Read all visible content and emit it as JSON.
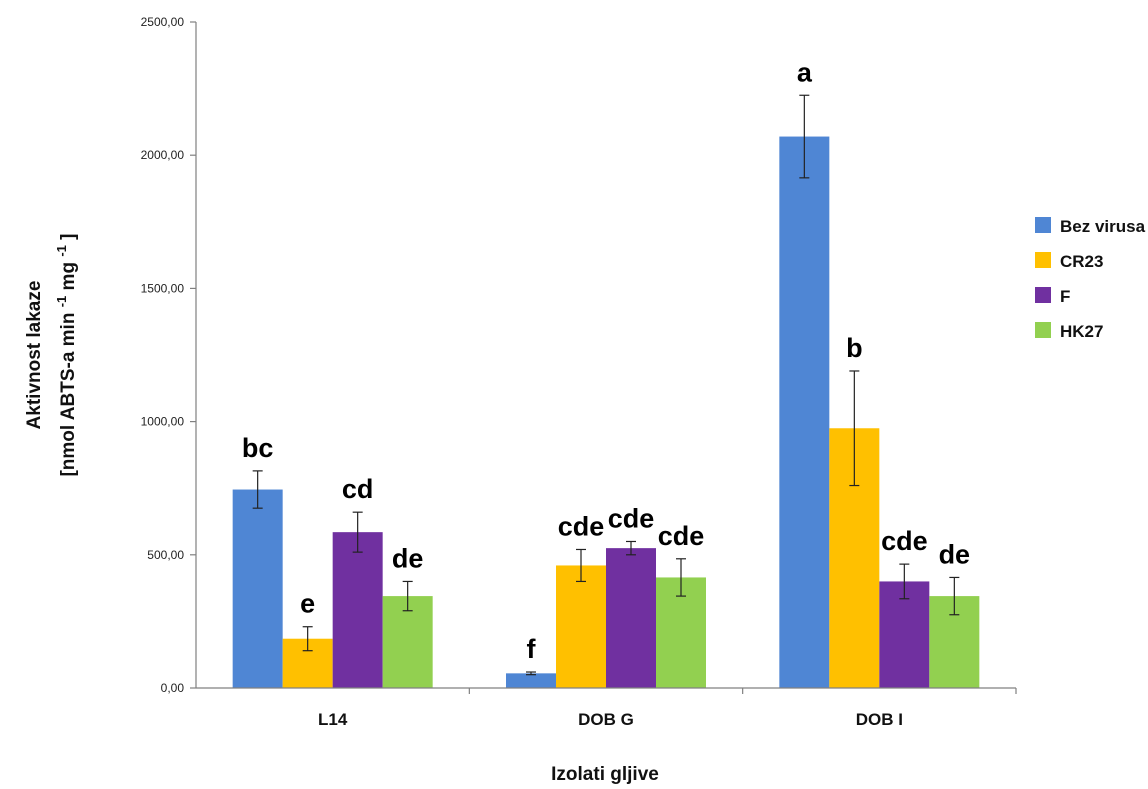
{
  "chart_data": {
    "type": "bar",
    "xlabel": "Izolati gljive",
    "ylabel_line1": "Aktivnost lakaze",
    "ylabel_line2": "[nmol ABTS-a min ",
    "ylabel_sup1": "-1",
    "ylabel_mid": " mg ",
    "ylabel_sup2": "-1",
    "ylabel_end": " ]",
    "ylim": [
      0,
      2500
    ],
    "yticks": [
      0,
      500,
      1000,
      1500,
      2000,
      2500
    ],
    "ytick_labels": [
      "0,00",
      "500,00",
      "1000,00",
      "1500,00",
      "2000,00",
      "2500,00"
    ],
    "categories": [
      "L14",
      "DOB G",
      "DOB I"
    ],
    "legend_position": "right",
    "grid": false,
    "series": [
      {
        "name": "Bez virusa",
        "color": "#4f86d4",
        "values": [
          745,
          55,
          2070
        ],
        "errors": [
          70,
          5,
          155
        ],
        "letters": [
          "bc",
          "f",
          "a"
        ]
      },
      {
        "name": "CR23",
        "color": "#ffc000",
        "values": [
          185,
          460,
          975
        ],
        "errors": [
          45,
          60,
          215
        ],
        "letters": [
          "e",
          "cde",
          "b"
        ]
      },
      {
        "name": "F",
        "color": "#7030a0",
        "values": [
          585,
          525,
          400
        ],
        "errors": [
          75,
          25,
          65
        ],
        "letters": [
          "cd",
          "cde",
          "cde"
        ]
      },
      {
        "name": "HK27",
        "color": "#92d050",
        "values": [
          345,
          415,
          345
        ],
        "errors": [
          55,
          70,
          70
        ],
        "letters": [
          "de",
          "cde",
          "de"
        ]
      }
    ]
  }
}
